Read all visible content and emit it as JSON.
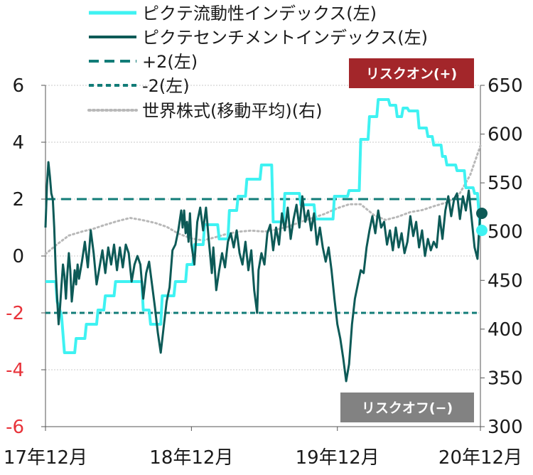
{
  "chart_data": {
    "type": "line",
    "x_ticks": [
      "17年12月",
      "18年12月",
      "19年12月",
      "20年12月"
    ],
    "y_left": {
      "min": -6,
      "max": 6,
      "ticks": [
        "6",
        "4",
        "2",
        "0",
        "-2",
        "-4",
        "-6"
      ]
    },
    "y_right": {
      "min": 300,
      "max": 650,
      "ticks": [
        "650",
        "600",
        "550",
        "500",
        "450",
        "400",
        "350",
        "300"
      ]
    },
    "grid": true,
    "legend_position": "top-left",
    "annotations": {
      "risk_on": "リスクオン(+)",
      "risk_off": "リスクオフ(−)"
    },
    "colors": {
      "liquidity": "#3ff2f2",
      "sentiment": "#0d5a57",
      "band": "#127c78",
      "equity": "#b8b8b8",
      "risk_on_box": "#a3262a",
      "risk_off_box": "#828282"
    },
    "series": [
      {
        "name": "ピクテ流動性インデックス(左)",
        "axis": "left",
        "style": "solid",
        "points": [
          [
            2017.92,
            -0.9
          ],
          [
            2017.99,
            -0.9
          ],
          [
            2018.0,
            -1.6
          ],
          [
            2018.03,
            -2.1
          ],
          [
            2018.05,
            -3.4
          ],
          [
            2018.12,
            -3.4
          ],
          [
            2018.13,
            -2.9
          ],
          [
            2018.19,
            -2.9
          ],
          [
            2018.2,
            -2.4
          ],
          [
            2018.27,
            -2.4
          ],
          [
            2018.28,
            -1.9
          ],
          [
            2018.32,
            -1.9
          ],
          [
            2018.33,
            -1.4
          ],
          [
            2018.39,
            -1.4
          ],
          [
            2018.4,
            -0.9
          ],
          [
            2018.58,
            -0.9
          ],
          [
            2018.59,
            -1.9
          ],
          [
            2018.63,
            -1.9
          ],
          [
            2018.64,
            -2.4
          ],
          [
            2018.71,
            -2.4
          ],
          [
            2018.72,
            -1.4
          ],
          [
            2018.8,
            -1.4
          ],
          [
            2018.81,
            -0.9
          ],
          [
            2018.88,
            -0.9
          ],
          [
            2018.89,
            -0.3
          ],
          [
            2018.93,
            -0.3
          ],
          [
            2018.94,
            0.4
          ],
          [
            2019.0,
            0.4
          ],
          [
            2019.01,
            1.1
          ],
          [
            2019.1,
            1.1
          ],
          [
            2019.11,
            0.6
          ],
          [
            2019.17,
            0.6
          ],
          [
            2019.18,
            1.6
          ],
          [
            2019.23,
            1.6
          ],
          [
            2019.24,
            2.1
          ],
          [
            2019.29,
            2.1
          ],
          [
            2019.3,
            2.7
          ],
          [
            2019.39,
            2.7
          ],
          [
            2019.4,
            3.2
          ],
          [
            2019.47,
            3.2
          ],
          [
            2019.48,
            1.2
          ],
          [
            2019.55,
            1.2
          ],
          [
            2019.56,
            2.2
          ],
          [
            2019.66,
            2.2
          ],
          [
            2019.67,
            1.8
          ],
          [
            2019.76,
            1.8
          ],
          [
            2019.77,
            1.3
          ],
          [
            2019.89,
            1.3
          ],
          [
            2019.9,
            2.1
          ],
          [
            2019.99,
            2.1
          ],
          [
            2020.0,
            2.3
          ],
          [
            2020.07,
            2.3
          ],
          [
            2020.08,
            4.1
          ],
          [
            2020.13,
            4.1
          ],
          [
            2020.14,
            4.9
          ],
          [
            2020.19,
            4.9
          ],
          [
            2020.2,
            5.5
          ],
          [
            2020.27,
            5.5
          ],
          [
            2020.28,
            5.3
          ],
          [
            2020.32,
            5.3
          ],
          [
            2020.33,
            4.9
          ],
          [
            2020.36,
            4.9
          ],
          [
            2020.37,
            5.2
          ],
          [
            2020.4,
            5.2
          ],
          [
            2020.41,
            5.1
          ],
          [
            2020.47,
            5.1
          ],
          [
            2020.48,
            4.5
          ],
          [
            2020.53,
            4.5
          ],
          [
            2020.54,
            4.2
          ],
          [
            2020.57,
            4.2
          ],
          [
            2020.58,
            3.9
          ],
          [
            2020.63,
            3.9
          ],
          [
            2020.64,
            3.5
          ],
          [
            2020.66,
            3.5
          ],
          [
            2020.67,
            3.2
          ],
          [
            2020.73,
            3.2
          ],
          [
            2020.74,
            3.0
          ],
          [
            2020.79,
            3.0
          ],
          [
            2020.8,
            2.4
          ],
          [
            2020.85,
            2.4
          ],
          [
            2020.86,
            2.2
          ],
          [
            2020.88,
            2.2
          ],
          [
            2020.89,
            1.5
          ],
          [
            2020.9,
            0.9
          ]
        ]
      },
      {
        "name": "ピクテセンチメントインデックス(左)",
        "axis": "left",
        "style": "solid",
        "points": [
          [
            2017.92,
            1.0
          ],
          [
            2017.93,
            2.5
          ],
          [
            2017.94,
            3.3
          ],
          [
            2017.95,
            2.8
          ],
          [
            2017.96,
            2.2
          ],
          [
            2017.97,
            2.0
          ],
          [
            2017.98,
            1.0
          ],
          [
            2017.99,
            -0.5
          ],
          [
            2018.0,
            -1.5
          ],
          [
            2018.01,
            -2.4
          ],
          [
            2018.02,
            -1.8
          ],
          [
            2018.03,
            -1.0
          ],
          [
            2018.04,
            -0.3
          ],
          [
            2018.05,
            -0.7
          ],
          [
            2018.06,
            -1.5
          ],
          [
            2018.07,
            -0.6
          ],
          [
            2018.08,
            0.1
          ],
          [
            2018.09,
            -0.5
          ],
          [
            2018.1,
            -1.6
          ],
          [
            2018.11,
            -1.1
          ],
          [
            2018.12,
            -0.5
          ],
          [
            2018.13,
            -1.0
          ],
          [
            2018.14,
            -0.3
          ],
          [
            2018.15,
            -0.8
          ],
          [
            2018.17,
            -0.2
          ],
          [
            2018.19,
            0.5
          ],
          [
            2018.21,
            -0.4
          ],
          [
            2018.23,
            0.9
          ],
          [
            2018.25,
            0.1
          ],
          [
            2018.27,
            -1.0
          ],
          [
            2018.29,
            -0.4
          ],
          [
            2018.31,
            0.2
          ],
          [
            2018.33,
            -0.6
          ],
          [
            2018.35,
            0.3
          ],
          [
            2018.37,
            -0.3
          ],
          [
            2018.39,
            0.4
          ],
          [
            2018.41,
            -0.5
          ],
          [
            2018.43,
            0.3
          ],
          [
            2018.45,
            -0.4
          ],
          [
            2018.47,
            0.4
          ],
          [
            2018.49,
            0.1
          ],
          [
            2018.51,
            -0.9
          ],
          [
            2018.53,
            -0.3
          ],
          [
            2018.55,
            0.0
          ],
          [
            2018.57,
            -0.3
          ],
          [
            2018.59,
            -1.5
          ],
          [
            2018.61,
            -0.6
          ],
          [
            2018.63,
            -0.2
          ],
          [
            2018.65,
            -1.0
          ],
          [
            2018.67,
            -1.8
          ],
          [
            2018.69,
            -2.7
          ],
          [
            2018.71,
            -3.4
          ],
          [
            2018.73,
            -2.5
          ],
          [
            2018.75,
            -1.6
          ],
          [
            2018.77,
            -1.1
          ],
          [
            2018.79,
            0.2
          ],
          [
            2018.81,
            0.4
          ],
          [
            2018.83,
            0.9
          ],
          [
            2018.85,
            1.6
          ],
          [
            2018.86,
            1.0
          ],
          [
            2018.87,
            1.6
          ],
          [
            2018.88,
            0.8
          ],
          [
            2018.89,
            1.2
          ],
          [
            2018.9,
            0.5
          ],
          [
            2018.91,
            1.5
          ],
          [
            2018.92,
            0.4
          ],
          [
            2018.94,
            -0.3
          ],
          [
            2018.96,
            1.2
          ],
          [
            2018.98,
            1.7
          ],
          [
            2019.0,
            0.9
          ],
          [
            2019.02,
            1.7
          ],
          [
            2019.04,
            0.5
          ],
          [
            2019.06,
            -0.6
          ],
          [
            2019.07,
            0.3
          ],
          [
            2019.09,
            -1.2
          ],
          [
            2019.11,
            -0.5
          ],
          [
            2019.13,
            0.1
          ],
          [
            2019.15,
            -0.4
          ],
          [
            2019.17,
            0.5
          ],
          [
            2019.19,
            0.8
          ],
          [
            2019.21,
            0.3
          ],
          [
            2019.23,
            0.9
          ],
          [
            2019.25,
            0.1
          ],
          [
            2019.27,
            -0.3
          ],
          [
            2019.29,
            0.5
          ],
          [
            2019.31,
            -0.5
          ],
          [
            2019.33,
            0.2
          ],
          [
            2019.35,
            -1.2
          ],
          [
            2019.37,
            -2.0
          ],
          [
            2019.38,
            -0.5
          ],
          [
            2019.4,
            0.1
          ],
          [
            2019.42,
            -0.3
          ],
          [
            2019.44,
            0.8
          ],
          [
            2019.46,
            1.1
          ],
          [
            2019.48,
            0.2
          ],
          [
            2019.5,
            1.0
          ],
          [
            2019.52,
            0.4
          ],
          [
            2019.54,
            1.5
          ],
          [
            2019.56,
            0.9
          ],
          [
            2019.58,
            1.7
          ],
          [
            2019.6,
            0.6
          ],
          [
            2019.62,
            1.3
          ],
          [
            2019.64,
            1.8
          ],
          [
            2019.66,
            1.0
          ],
          [
            2019.68,
            2.1
          ],
          [
            2019.7,
            1.2
          ],
          [
            2019.72,
            1.6
          ],
          [
            2019.74,
            0.9
          ],
          [
            2019.76,
            1.5
          ],
          [
            2019.78,
            0.4
          ],
          [
            2019.8,
            1.0
          ],
          [
            2019.82,
            0.3
          ],
          [
            2019.84,
            -0.2
          ],
          [
            2019.86,
            0.3
          ],
          [
            2019.88,
            -0.5
          ],
          [
            2019.9,
            -1.5
          ],
          [
            2019.92,
            -2.4
          ],
          [
            2019.94,
            -2.9
          ],
          [
            2019.96,
            -3.6
          ],
          [
            2019.98,
            -4.4
          ],
          [
            2020.0,
            -3.8
          ],
          [
            2020.02,
            -2.4
          ],
          [
            2020.04,
            -1.5
          ],
          [
            2020.06,
            -1.0
          ],
          [
            2020.08,
            -0.5
          ],
          [
            2020.1,
            -0.6
          ],
          [
            2020.12,
            0.3
          ],
          [
            2020.14,
            0.9
          ],
          [
            2020.16,
            1.4
          ],
          [
            2020.18,
            0.8
          ],
          [
            2020.2,
            1.6
          ],
          [
            2020.22,
            1.0
          ],
          [
            2020.24,
            1.2
          ],
          [
            2020.26,
            0.4
          ],
          [
            2020.28,
            0.9
          ],
          [
            2020.3,
            0.2
          ],
          [
            2020.32,
            1.0
          ],
          [
            2020.34,
            0.3
          ],
          [
            2020.36,
            0.8
          ],
          [
            2020.38,
            0.1
          ],
          [
            2020.4,
            0.5
          ],
          [
            2020.42,
            1.4
          ],
          [
            2020.44,
            0.7
          ],
          [
            2020.46,
            1.2
          ],
          [
            2020.48,
            0.3
          ],
          [
            2020.5,
            0.9
          ],
          [
            2020.52,
            0.0
          ],
          [
            2020.54,
            0.6
          ],
          [
            2020.56,
            0.2
          ],
          [
            2020.58,
            0.5
          ],
          [
            2020.6,
            0.3
          ],
          [
            2020.62,
            1.4
          ],
          [
            2020.64,
            0.6
          ],
          [
            2020.66,
            1.6
          ],
          [
            2020.68,
            2.1
          ],
          [
            2020.7,
            1.4
          ],
          [
            2020.72,
            2.0
          ],
          [
            2020.74,
            2.2
          ],
          [
            2020.76,
            1.3
          ],
          [
            2020.78,
            2.1
          ],
          [
            2020.8,
            1.6
          ],
          [
            2020.82,
            2.3
          ],
          [
            2020.84,
            1.3
          ],
          [
            2020.86,
            0.3
          ],
          [
            2020.88,
            -0.1
          ],
          [
            2020.89,
            0.8
          ],
          [
            2020.9,
            1.5
          ]
        ]
      },
      {
        "name": "+2(左)",
        "axis": "left",
        "style": "dashed",
        "points": [
          [
            2017.92,
            2.0
          ],
          [
            2020.9,
            2.0
          ]
        ]
      },
      {
        "name": "-2(左)",
        "axis": "left",
        "style": "dashed",
        "points": [
          [
            2017.92,
            -2.0
          ],
          [
            2020.9,
            -2.0
          ]
        ]
      },
      {
        "name": "世界株式(移動平均)(右)",
        "axis": "right",
        "style": "dotted",
        "points": [
          [
            2017.92,
            477
          ],
          [
            2018.0,
            487
          ],
          [
            2018.08,
            496
          ],
          [
            2018.17,
            500
          ],
          [
            2018.25,
            503
          ],
          [
            2018.33,
            507
          ],
          [
            2018.42,
            511
          ],
          [
            2018.5,
            514
          ],
          [
            2018.58,
            512
          ],
          [
            2018.67,
            509
          ],
          [
            2018.75,
            505
          ],
          [
            2018.83,
            498
          ],
          [
            2018.92,
            493
          ],
          [
            2019.0,
            491
          ],
          [
            2019.08,
            494
          ],
          [
            2019.17,
            498
          ],
          [
            2019.25,
            500
          ],
          [
            2019.33,
            501
          ],
          [
            2019.42,
            500
          ],
          [
            2019.5,
            502
          ],
          [
            2019.58,
            505
          ],
          [
            2019.67,
            510
          ],
          [
            2019.75,
            514
          ],
          [
            2019.83,
            518
          ],
          [
            2019.92,
            524
          ],
          [
            2020.0,
            528
          ],
          [
            2020.08,
            528
          ],
          [
            2020.17,
            517
          ],
          [
            2020.25,
            512
          ],
          [
            2020.33,
            515
          ],
          [
            2020.42,
            520
          ],
          [
            2020.5,
            522
          ],
          [
            2020.58,
            526
          ],
          [
            2020.67,
            530
          ],
          [
            2020.75,
            537
          ],
          [
            2020.83,
            558
          ],
          [
            2020.9,
            588
          ]
        ]
      }
    ],
    "end_markers": [
      {
        "series": "ピクテ流動性インデックス(左)",
        "x": 2020.9,
        "y": 0.9
      },
      {
        "series": "ピクテセンチメントインデックス(左)",
        "x": 2020.9,
        "y": 1.5
      }
    ]
  }
}
